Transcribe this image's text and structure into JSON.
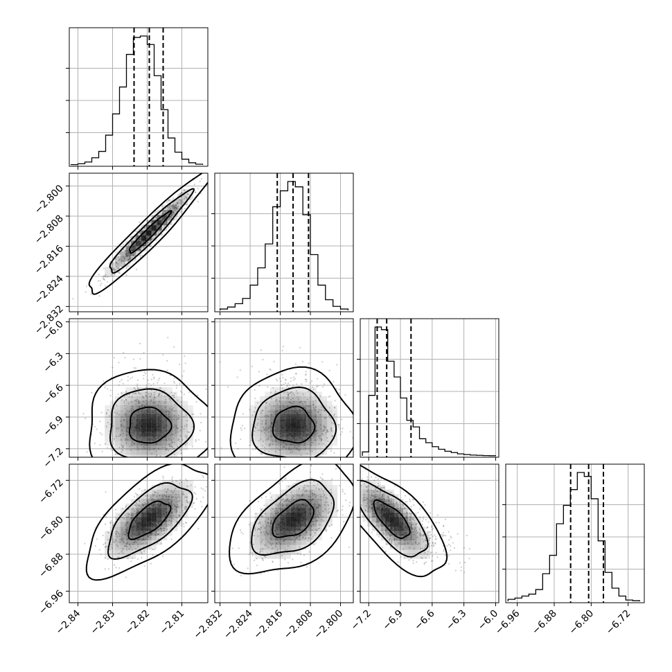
{
  "chart_data": {
    "type": "corner",
    "n_params": 4,
    "grid": true,
    "axis_labels": [
      "",
      "",
      "",
      ""
    ],
    "ranges": [
      [
        -2.8425,
        -2.8025
      ],
      [
        -2.8334,
        -2.7966
      ],
      [
        -7.28,
        -5.97
      ],
      [
        -6.985,
        -6.685
      ]
    ],
    "ticks": [
      [
        "-2.84",
        "-2.83",
        "-2.82",
        "-2.81"
      ],
      [
        "-2.832",
        "-2.824",
        "-2.816",
        "-2.808",
        "-2.800"
      ],
      [
        "-7.2",
        "-6.9",
        "-6.6",
        "-6.3",
        "-6.0"
      ],
      [
        "-6.96",
        "-6.88",
        "-6.80",
        "-6.72"
      ]
    ],
    "marginals": [
      {
        "param": 0,
        "quantiles": [
          -2.8238,
          -2.8194,
          -2.8154
        ],
        "bin_edges": [
          -2.842,
          -2.84,
          -2.838,
          -2.836,
          -2.834,
          -2.832,
          -2.83,
          -2.828,
          -2.826,
          -2.824,
          -2.822,
          -2.82,
          -2.818,
          -2.816,
          -2.814,
          -2.812,
          -2.81,
          -2.808,
          -2.806,
          -2.804
        ],
        "counts": [
          0.002,
          0.008,
          0.02,
          0.05,
          0.095,
          0.21,
          0.36,
          0.55,
          0.78,
          0.9,
          0.91,
          0.85,
          0.63,
          0.39,
          0.19,
          0.09,
          0.04,
          0.015,
          0.005
        ]
      },
      {
        "param": 1,
        "quantiles": [
          -2.8168,
          -2.8126,
          -2.8085
        ],
        "bin_edges": [
          -2.832,
          -2.83,
          -2.828,
          -2.826,
          -2.824,
          -2.822,
          -2.82,
          -2.818,
          -2.816,
          -2.814,
          -2.812,
          -2.81,
          -2.808,
          -2.806,
          -2.804,
          -2.802,
          -2.8,
          -2.798
        ],
        "counts": [
          0.01,
          0.025,
          0.05,
          0.09,
          0.19,
          0.32,
          0.5,
          0.78,
          0.9,
          0.97,
          0.93,
          0.72,
          0.42,
          0.19,
          0.08,
          0.03,
          0.01
        ]
      },
      {
        "param": 2,
        "quantiles": [
          -7.12,
          -7.03,
          -6.8
        ],
        "bin_edges": [
          -7.26,
          -7.2,
          -7.14,
          -7.08,
          -7.02,
          -6.96,
          -6.9,
          -6.84,
          -6.78,
          -6.72,
          -6.66,
          -6.6,
          -6.54,
          -6.48,
          -6.42,
          -6.36,
          -6.3,
          -6.24,
          -6.18,
          -6.12,
          -6.06,
          -6.0
        ],
        "counts": [
          0.03,
          0.46,
          0.98,
          0.96,
          0.72,
          0.6,
          0.44,
          0.27,
          0.22,
          0.13,
          0.1,
          0.07,
          0.05,
          0.035,
          0.025,
          0.015,
          0.01,
          0.006,
          0.004,
          0.002,
          0.001
        ]
      },
      {
        "param": 3,
        "quantiles": [
          -6.8445,
          -6.8055,
          -6.7735
        ],
        "bin_edges": [
          -6.98,
          -6.965,
          -6.95,
          -6.935,
          -6.92,
          -6.905,
          -6.89,
          -6.875,
          -6.86,
          -6.845,
          -6.83,
          -6.815,
          -6.8,
          -6.785,
          -6.77,
          -6.755,
          -6.74,
          -6.725,
          -6.71,
          -6.695
        ],
        "counts": [
          0.015,
          0.025,
          0.04,
          0.055,
          0.09,
          0.21,
          0.35,
          0.59,
          0.73,
          0.85,
          0.98,
          0.95,
          0.78,
          0.46,
          0.22,
          0.1,
          0.04,
          0.01,
          0.005
        ]
      }
    ],
    "pairs": [
      {
        "x_param": 0,
        "y_param": 1,
        "center": [
          -2.8195,
          -2.8125
        ],
        "spread": [
          0.006,
          0.0055
        ],
        "corr": 0.96
      },
      {
        "x_param": 0,
        "y_param": 2,
        "center": [
          -2.8195,
          -6.98
        ],
        "spread": [
          0.006,
          0.17
        ],
        "corr": 0.0
      },
      {
        "x_param": 1,
        "y_param": 2,
        "center": [
          -2.8125,
          -6.98
        ],
        "spread": [
          0.0055,
          0.17
        ],
        "corr": 0.0
      },
      {
        "x_param": 0,
        "y_param": 3,
        "center": [
          -2.8195,
          -6.805
        ],
        "spread": [
          0.006,
          0.04
        ],
        "corr": 0.65
      },
      {
        "x_param": 1,
        "y_param": 3,
        "center": [
          -2.8125,
          -6.805
        ],
        "spread": [
          0.0055,
          0.04
        ],
        "corr": 0.48
      },
      {
        "x_param": 2,
        "y_param": 3,
        "center": [
          -6.98,
          -6.805
        ],
        "spread": [
          0.17,
          0.04
        ],
        "corr": -0.72
      }
    ],
    "contour_levels": [
      0.39,
      0.86,
      0.99
    ],
    "colors": {
      "line": "#000000",
      "grid": "#b0b0b0",
      "points": "#555555",
      "density_cell": "#000000"
    }
  }
}
